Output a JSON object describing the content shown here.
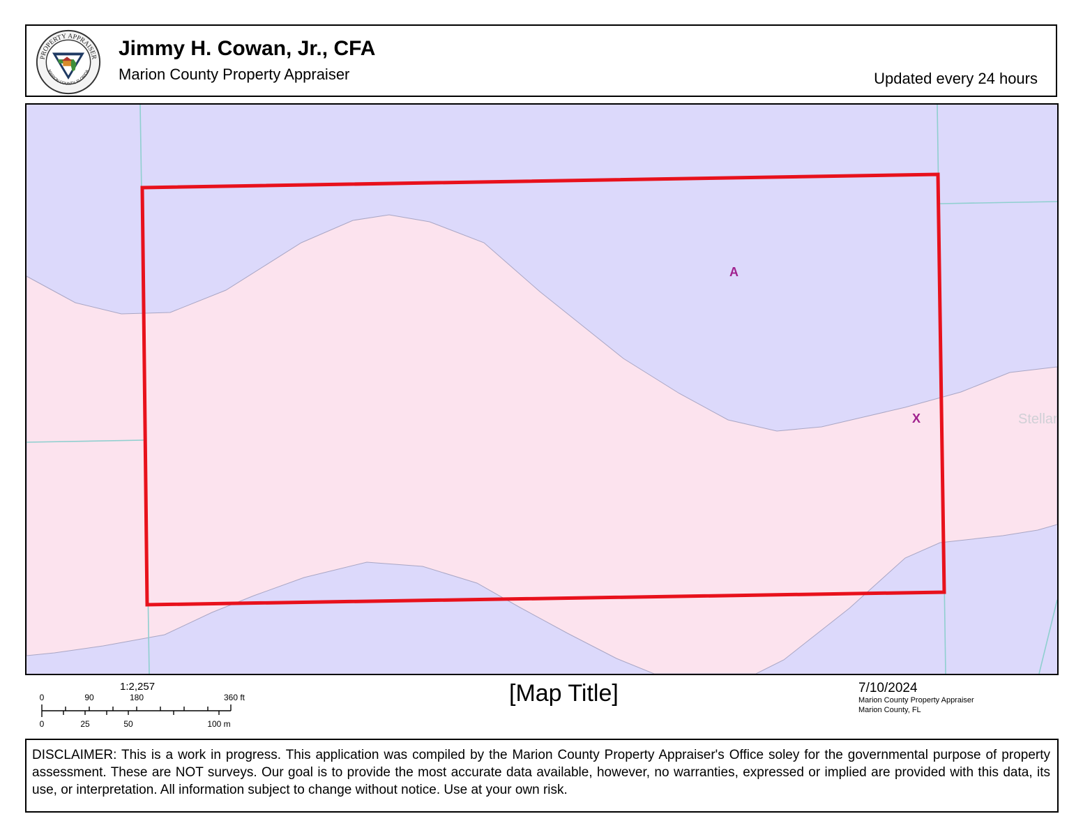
{
  "header": {
    "appraiser_name": "Jimmy H. Cowan, Jr., CFA",
    "office_name": "Marion County Property Appraiser",
    "update_note": "Updated every 24 hours",
    "logo": {
      "top_text": "PROPERTY APPRAISER",
      "bottom_text": "MARION COUNTY, FLORIDA"
    }
  },
  "map": {
    "zones": [
      {
        "label": "A"
      },
      {
        "label": "X"
      }
    ],
    "watermark": "StellarMLS",
    "colors": {
      "zone_a_fill": "#dcd9fb",
      "zone_x_fill": "#fce3ee",
      "parcel_outline": "#e8111c",
      "parcel_lines": "#8fcfcf",
      "zone_label": "#a0228e"
    }
  },
  "footer": {
    "scale_ratio": "1:2,257",
    "scale_ft_labels": [
      "0",
      "90",
      "180",
      "360 ft"
    ],
    "scale_m_labels": [
      "0",
      "25",
      "50",
      "100 m"
    ],
    "map_title": "[Map Title]",
    "date": "7/10/2024",
    "credit_line1": "Marion County Property Appraiser",
    "credit_line2": "Marion County, FL"
  },
  "disclaimer": "DISCLAIMER: This is a work in progress. This application was compiled by the Marion County Property Appraiser's Office soley for the governmental purpose of property assessment. These are NOT surveys. Our goal is to provide the most accurate data available, however, no warranties, expressed or implied are provided with this data, its use, or interpretation. All information subject to change without notice. Use at your own risk."
}
